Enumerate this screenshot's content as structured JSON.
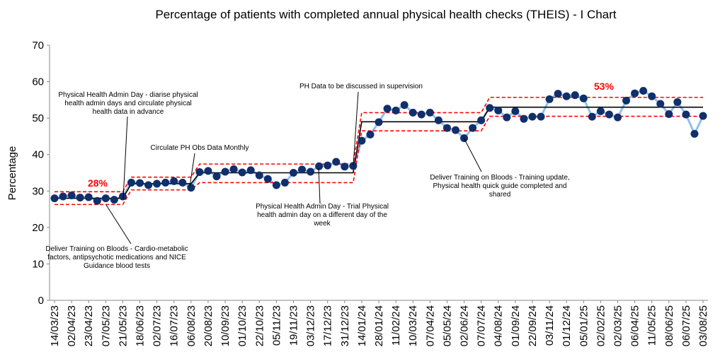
{
  "chart_data": {
    "type": "line",
    "title": "Percentage of patients with completed annual physical health checks (THEIS) - I Chart",
    "y_label": "Percentage",
    "ylim": [
      0,
      70
    ],
    "yticks": [
      0,
      10,
      20,
      30,
      40,
      50,
      60,
      70
    ],
    "grid": false,
    "categories": [
      "14/03/23",
      null,
      "02/04/23",
      null,
      "23/04/23",
      null,
      "07/05/23",
      null,
      "21/05/23",
      null,
      "18/06/23",
      null,
      "02/07/23",
      null,
      "16/07/23",
      null,
      "06/08/23",
      null,
      "20/08/23",
      null,
      "10/09/23",
      null,
      "01/10/23",
      null,
      "22/10/23",
      null,
      "05/11/23",
      null,
      "19/11/23",
      null,
      "03/12/23",
      null,
      "17/12/23",
      null,
      "31/12/23",
      null,
      "14/01/24",
      null,
      "28/01/24",
      null,
      "11/02/24",
      null,
      "10/03/24",
      null,
      "07/04/24",
      null,
      "05/05/24",
      null,
      "02/06/24",
      null,
      "07/07/24",
      null,
      "04/08/24",
      null,
      "01/09/24",
      null,
      "22/09/24",
      null,
      "03/11/24",
      null,
      "01/12/24",
      null,
      "05/01/25",
      null,
      "02/02/25",
      null,
      "02/03/25",
      null,
      "06/04/25",
      null,
      "11/05/25",
      null,
      "08/06/25",
      null,
      "06/07/25",
      null,
      "03/08/25"
    ],
    "series": [
      {
        "color": "#8fc1ea",
        "marker_color": "#102f6b",
        "markers": true,
        "values": [
          28,
          28.5,
          28.8,
          28.2,
          28.3,
          27.3,
          28,
          27.6,
          28.5,
          32.3,
          32.2,
          31.6,
          32,
          32.3,
          32.7,
          32.3,
          30.9,
          35.2,
          35.5,
          34,
          35.3,
          36,
          35.1,
          35.7,
          34.3,
          33.3,
          31.6,
          32.3,
          35,
          35.9,
          35.3,
          36.8,
          37,
          38,
          36.7,
          36.9,
          43.8,
          45.5,
          48.9,
          52.6,
          52.1,
          53.6,
          51.5,
          51,
          51.5,
          49.4,
          47.3,
          46.7,
          44.5,
          47.3,
          49.4,
          52.8,
          52.1,
          50.2,
          51.9,
          49.8,
          50.4,
          50.4,
          55.2,
          56.7,
          56,
          56.3,
          55.4,
          50.4,
          51.9,
          51,
          50.2,
          54.8,
          56.8,
          57.5,
          56,
          53.9,
          51.1,
          54.4,
          51,
          45.7,
          50.6
        ]
      },
      {
        "color": "#000000",
        "values": [
          28,
          28,
          28,
          28,
          28,
          28,
          28,
          28,
          28,
          32,
          32,
          32,
          32,
          32,
          32,
          32,
          32,
          35,
          35,
          35,
          35,
          35,
          35,
          35,
          35,
          35,
          35,
          35,
          35,
          35,
          35,
          35,
          35,
          35,
          35,
          35,
          49,
          49,
          49,
          49,
          49,
          49,
          49,
          49,
          49,
          49,
          49,
          49,
          49,
          49,
          49,
          53,
          53,
          53,
          53,
          53,
          53,
          53,
          53,
          53,
          53,
          53,
          53,
          53,
          53,
          53,
          53,
          53,
          53,
          53,
          53,
          53,
          53,
          53,
          53,
          53,
          53
        ]
      },
      {
        "color": "#ff0000",
        "dashed": true,
        "values": [
          29.8,
          29.8,
          29.8,
          29.8,
          29.8,
          29.8,
          29.8,
          29.8,
          29.8,
          33.8,
          33.8,
          33.8,
          33.8,
          33.8,
          33.8,
          33.8,
          33.8,
          37.4,
          37.4,
          37.4,
          37.4,
          37.4,
          37.4,
          37.4,
          37.4,
          37.4,
          37.4,
          37.4,
          37.4,
          37.4,
          37.4,
          37.4,
          37.4,
          37.4,
          37.4,
          37.4,
          51.5,
          51.5,
          51.5,
          51.5,
          51.5,
          51.5,
          51.5,
          51.5,
          51.5,
          51.5,
          51.5,
          51.5,
          51.5,
          51.5,
          51.5,
          55.7,
          55.7,
          55.7,
          55.7,
          55.7,
          55.7,
          55.7,
          55.7,
          55.7,
          55.7,
          55.7,
          55.7,
          55.7,
          55.7,
          55.7,
          55.7,
          55.7,
          55.7,
          55.7,
          55.7,
          55.7,
          55.7,
          55.7,
          55.7,
          55.7,
          55.7
        ]
      },
      {
        "color": "#ff0000",
        "dashed": true,
        "values": [
          26.3,
          26.3,
          26.3,
          26.3,
          26.3,
          26.3,
          26.3,
          26.3,
          26.3,
          30.3,
          30.3,
          30.3,
          30.3,
          30.3,
          30.3,
          30.3,
          30.3,
          32.3,
          32.3,
          32.3,
          32.3,
          32.3,
          32.3,
          32.3,
          32.3,
          32.3,
          32.3,
          32.3,
          32.3,
          32.3,
          32.3,
          32.3,
          32.3,
          32.3,
          32.3,
          32.3,
          46.5,
          46.5,
          46.5,
          46.5,
          46.5,
          46.5,
          46.5,
          46.5,
          46.5,
          46.5,
          46.5,
          46.5,
          46.5,
          46.5,
          46.5,
          50.5,
          50.5,
          50.5,
          50.5,
          50.5,
          50.5,
          50.5,
          50.5,
          50.5,
          50.5,
          50.5,
          50.5,
          50.5,
          50.5,
          50.5,
          50.5,
          50.5,
          50.5,
          50.5,
          50.5,
          50.5,
          50.5,
          50.5,
          50.5,
          50.5,
          50.5
        ]
      }
    ],
    "annotations": [
      {
        "lines": [
          "Physical Health Admin Day - diarise physical",
          "health admin days and circulate physical",
          "health data in advance"
        ]
      },
      {
        "lines": [
          "Circulate PH Obs Data Monthly"
        ]
      },
      {
        "lines": [
          "PH Data to be discussed in supervision"
        ]
      },
      {
        "lines": [
          "Physical Health Admin Day - Trial Physical",
          "health admin day on a different day of the",
          "week"
        ]
      },
      {
        "lines": [
          "Deliver Training on Bloods - Training update,",
          "Physical health quick guide completed and",
          "shared"
        ]
      },
      {
        "lines": [
          "Deliver Training on Bloods - Cardio-metabolic",
          "factors, antipsychotic medications and NICE",
          "Guidance blood tests"
        ]
      }
    ],
    "highlights": [
      {
        "text": "28%",
        "color": "#ff0000"
      },
      {
        "text": "53%",
        "color": "#ff0000"
      }
    ]
  }
}
